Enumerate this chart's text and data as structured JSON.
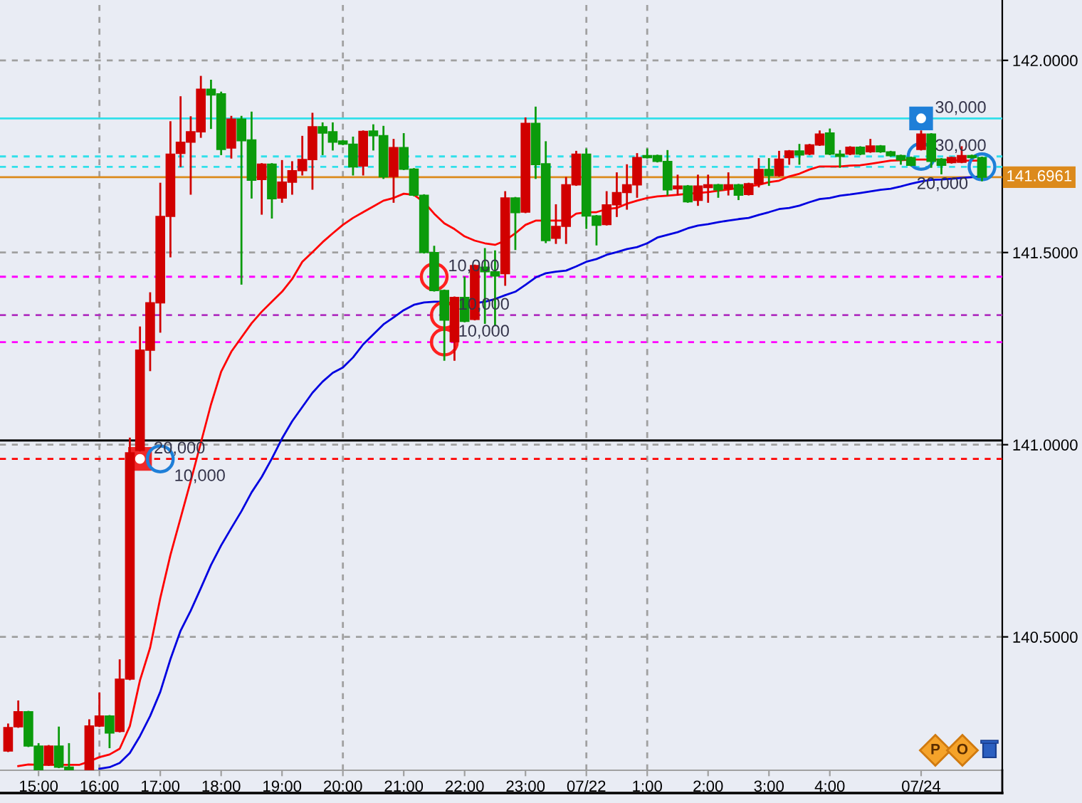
{
  "chart_data": {
    "type": "candlestick",
    "categories": [
      null,
      null,
      null,
      "15:00",
      null,
      null,
      null,
      null,
      null,
      "16:00",
      null,
      null,
      null,
      null,
      null,
      "17:00",
      null,
      null,
      null,
      null,
      null,
      "18:00",
      null,
      null,
      null,
      null,
      null,
      "19:00",
      null,
      null,
      null,
      null,
      null,
      "20:00",
      null,
      null,
      null,
      null,
      null,
      "21:00",
      null,
      null,
      null,
      null,
      null,
      "22:00",
      null,
      null,
      null,
      null,
      null,
      "23:00",
      null,
      null,
      null,
      null,
      null,
      "07/22",
      null,
      null,
      null,
      null,
      null,
      "1:00",
      null,
      null,
      null,
      null,
      null,
      "2:00",
      null,
      null,
      null,
      null,
      null,
      "3:00",
      null,
      null,
      null,
      null,
      null,
      "4:00",
      null,
      null,
      null,
      null,
      null,
      null,
      null,
      null,
      "07/24",
      null,
      null,
      null,
      null,
      null,
      null
    ],
    "ohlc": [
      [
        140.203,
        140.272,
        140.203,
        140.264
      ],
      [
        140.266,
        140.332,
        140.266,
        140.305
      ],
      [
        140.305,
        140.305,
        140.216,
        140.216
      ],
      [
        140.216,
        140.221,
        140.154,
        140.154
      ],
      [
        140.167,
        140.216,
        140.167,
        140.216
      ],
      [
        140.216,
        140.264,
        140.161,
        140.161
      ],
      [
        140.161,
        140.221,
        140.154,
        140.154
      ],
      null,
      [
        140.154,
        140.283,
        140.154,
        140.268
      ],
      [
        140.268,
        140.353,
        140.268,
        140.294
      ],
      [
        140.294,
        140.294,
        140.213,
        140.25
      ],
      [
        140.254,
        140.439,
        140.254,
        140.39
      ],
      [
        140.39,
        141.016,
        140.39,
        140.979
      ],
      [
        140.985,
        141.305,
        140.985,
        141.246
      ],
      [
        141.246,
        141.394,
        141.194,
        141.369
      ],
      [
        141.369,
        141.679,
        141.294,
        141.594
      ],
      [
        141.594,
        141.839,
        141.49,
        141.756
      ],
      [
        141.758,
        141.904,
        141.725,
        141.787
      ],
      [
        141.787,
        141.852,
        141.653,
        141.814
      ],
      [
        141.814,
        141.957,
        141.801,
        141.925
      ],
      [
        141.925,
        141.947,
        141.824,
        141.91
      ],
      [
        141.913,
        141.916,
        141.756,
        141.768
      ],
      [
        141.772,
        141.853,
        141.747,
        141.847
      ],
      [
        141.847,
        141.853,
        141.419,
        141.791
      ],
      [
        141.793,
        141.864,
        141.643,
        141.688
      ],
      [
        141.69,
        141.73,
        141.601,
        141.73
      ],
      [
        141.73,
        141.73,
        141.591,
        141.64
      ],
      [
        141.642,
        141.738,
        141.632,
        141.683
      ],
      [
        141.683,
        141.735,
        141.653,
        141.713
      ],
      [
        141.713,
        141.801,
        141.703,
        141.742
      ],
      [
        141.742,
        141.861,
        141.666,
        141.827
      ],
      [
        141.827,
        141.836,
        141.756,
        141.811
      ],
      [
        141.814,
        141.836,
        141.768,
        141.787
      ],
      [
        141.79,
        141.79,
        141.782,
        141.782
      ],
      [
        141.782,
        141.799,
        141.703,
        141.723
      ],
      [
        141.725,
        141.815,
        141.703,
        141.815
      ],
      [
        141.816,
        141.831,
        141.768,
        141.804
      ],
      [
        141.804,
        141.827,
        141.694,
        141.697
      ],
      [
        141.698,
        141.793,
        141.632,
        141.773
      ],
      [
        141.773,
        141.808,
        141.717,
        141.717
      ],
      [
        141.717,
        141.717,
        141.649,
        141.649
      ],
      [
        141.649,
        141.649,
        141.5,
        141.5
      ],
      [
        141.5,
        141.515,
        141.401,
        141.401
      ],
      [
        141.401,
        141.401,
        141.221,
        141.324
      ],
      [
        141.268,
        141.383,
        141.221,
        141.383
      ],
      [
        141.383,
        141.435,
        141.321,
        141.321
      ],
      [
        141.326,
        141.466,
        141.326,
        141.466
      ],
      [
        141.462,
        141.509,
        141.317,
        141.45
      ],
      [
        141.45,
        141.503,
        141.311,
        141.439
      ],
      [
        141.445,
        141.657,
        141.416,
        141.642
      ],
      [
        141.642,
        141.642,
        141.509,
        141.604
      ],
      [
        141.605,
        141.849,
        141.605,
        141.836
      ],
      [
        141.836,
        141.877,
        141.694,
        141.729
      ],
      [
        141.731,
        141.787,
        141.527,
        141.531
      ],
      [
        141.537,
        141.623,
        141.525,
        141.568
      ],
      [
        141.568,
        141.694,
        141.525,
        141.676
      ],
      [
        141.676,
        141.762,
        141.676,
        141.756
      ],
      [
        141.756,
        141.768,
        141.564,
        141.595
      ],
      [
        141.595,
        141.595,
        141.521,
        141.571
      ],
      [
        141.573,
        141.657,
        141.573,
        141.624
      ],
      [
        141.624,
        141.706,
        141.595,
        141.656
      ],
      [
        141.656,
        141.727,
        141.614,
        141.676
      ],
      [
        141.676,
        141.756,
        141.645,
        141.747
      ],
      [
        141.752,
        141.768,
        141.747,
        141.747
      ],
      [
        141.752,
        141.752,
        141.737,
        141.737
      ],
      [
        141.737,
        141.764,
        141.651,
        141.663
      ],
      [
        141.666,
        141.7,
        141.651,
        141.673
      ],
      [
        141.673,
        141.673,
        141.632,
        141.632
      ],
      [
        141.636,
        141.7,
        141.624,
        141.673
      ],
      [
        141.669,
        141.7,
        141.632,
        141.676
      ],
      [
        141.676,
        141.676,
        141.645,
        141.663
      ],
      [
        141.666,
        141.706,
        141.651,
        141.676
      ],
      [
        141.676,
        141.676,
        141.639,
        141.649
      ],
      [
        141.651,
        141.679,
        141.651,
        141.679
      ],
      [
        141.679,
        141.743,
        141.672,
        141.716
      ],
      [
        141.716,
        141.743,
        141.676,
        141.7
      ],
      [
        141.7,
        141.762,
        141.7,
        141.743
      ],
      [
        141.747,
        141.764,
        141.731,
        141.764
      ],
      [
        141.764,
        141.78,
        141.731,
        141.754
      ],
      [
        141.756,
        141.78,
        141.756,
        141.78
      ],
      [
        141.78,
        141.815,
        141.78,
        141.808
      ],
      [
        141.811,
        141.82,
        141.756,
        141.756
      ],
      [
        141.756,
        141.764,
        141.723,
        141.75
      ],
      [
        141.756,
        141.774,
        141.756,
        141.774
      ],
      [
        141.774,
        141.774,
        141.756,
        141.756
      ],
      [
        141.762,
        141.793,
        141.762,
        141.777
      ],
      [
        141.777,
        141.777,
        141.762,
        141.762
      ],
      [
        141.762,
        141.762,
        141.752,
        141.752
      ],
      [
        141.752,
        141.752,
        141.731,
        141.741
      ],
      [
        141.747,
        141.747,
        141.727,
        141.727
      ],
      [
        141.768,
        141.815,
        141.768,
        141.808
      ],
      [
        141.808,
        141.808,
        141.723,
        141.737
      ],
      [
        141.743,
        141.743,
        141.706,
        141.727
      ],
      [
        141.734,
        141.747,
        141.734,
        141.747
      ],
      [
        141.735,
        141.774,
        141.735,
        141.752
      ],
      [
        141.752,
        141.752,
        141.747,
        141.747
      ],
      [
        141.747,
        141.747,
        141.688,
        141.696
      ]
    ],
    "colors": [
      "#d10000",
      "#d10000",
      "#0b9b0b",
      "#0b9b0b",
      "#d10000",
      "#0b9b0b",
      "#0b9b0b",
      "#0b9b0b",
      "#d10000",
      "#d10000",
      "#0b9b0b",
      "#d10000",
      "#d10000",
      "#d10000",
      "#d10000",
      "#d10000",
      "#d10000",
      "#d10000",
      "#d10000",
      "#d10000",
      "#0b9b0b",
      "#0b9b0b",
      "#d10000",
      "#0b9b0b",
      "#0b9b0b",
      "#d10000",
      "#0b9b0b",
      "#d10000",
      "#d10000",
      "#d10000",
      "#d10000",
      "#0b9b0b",
      "#0b9b0b",
      "#0b9b0b",
      "#0b9b0b",
      "#d10000",
      "#0b9b0b",
      "#0b9b0b",
      "#d10000",
      "#0b9b0b",
      "#0b9b0b",
      "#0b9b0b",
      "#0b9b0b",
      "#0b9b0b",
      "#d10000",
      "#0b9b0b",
      "#d10000",
      "#0b9b0b",
      "#0b9b0b",
      "#d10000",
      "#0b9b0b",
      "#d10000",
      "#0b9b0b",
      "#0b9b0b",
      "#d10000",
      "#d10000",
      "#d10000",
      "#0b9b0b",
      "#0b9b0b",
      "#d10000",
      "#d10000",
      "#d10000",
      "#d10000",
      "#0b9b0b",
      "#0b9b0b",
      "#0b9b0b",
      "#d10000",
      "#0b9b0b",
      "#d10000",
      "#d10000",
      "#0b9b0b",
      "#d10000",
      "#0b9b0b",
      "#d10000",
      "#d10000",
      "#0b9b0b",
      "#d10000",
      "#d10000",
      "#0b9b0b",
      "#d10000",
      "#d10000",
      "#0b9b0b",
      "#0b9b0b",
      "#d10000",
      "#0b9b0b",
      "#d10000",
      "#0b9b0b",
      "#0b9b0b",
      "#0b9b0b",
      "#0b9b0b",
      "#d10000",
      "#0b9b0b",
      "#0b9b0b",
      "#d10000",
      "#d10000",
      "#0b9b0b",
      "#0b9b0b"
    ],
    "series": [
      {
        "type": "line",
        "color": "#ff0000",
        "values": [
          null,
          140.164,
          140.168,
          140.167,
          140.167,
          140.167,
          140.167,
          140.167,
          140.176,
          140.187,
          140.194,
          140.209,
          140.268,
          140.387,
          140.472,
          140.601,
          140.713,
          140.809,
          140.905,
          141.005,
          141.105,
          141.19,
          141.242,
          141.279,
          141.316,
          141.346,
          141.372,
          141.398,
          141.431,
          141.476,
          141.501,
          141.527,
          141.55,
          141.572,
          141.59,
          141.605,
          141.62,
          141.635,
          141.642,
          141.653,
          141.65,
          141.631,
          141.601,
          141.576,
          141.561,
          141.542,
          141.531,
          141.524,
          141.52,
          141.531,
          141.55,
          141.572,
          141.583,
          141.583,
          141.583,
          141.583,
          141.601,
          141.605,
          141.605,
          141.613,
          141.616,
          141.627,
          141.635,
          141.642,
          141.646,
          141.648,
          141.65,
          141.653,
          141.655,
          141.657,
          141.661,
          141.664,
          141.668,
          141.672,
          141.676,
          141.683,
          141.687,
          141.698,
          141.705,
          141.716,
          141.724,
          141.724,
          141.724,
          141.726,
          141.727,
          141.731,
          141.735,
          141.739,
          141.74,
          141.742,
          141.742,
          141.742,
          141.742,
          141.74,
          141.739,
          141.739,
          141.739
        ]
      },
      {
        "type": "line",
        "color": "#0000e0",
        "values": [
          null,
          null,
          null,
          null,
          null,
          null,
          null,
          null,
          null,
          140.157,
          140.161,
          140.172,
          140.198,
          140.242,
          140.294,
          140.357,
          140.442,
          140.516,
          140.568,
          140.627,
          140.687,
          140.738,
          140.783,
          140.827,
          140.876,
          140.916,
          140.964,
          141.016,
          141.061,
          141.098,
          141.135,
          141.164,
          141.187,
          141.201,
          141.227,
          141.261,
          141.287,
          141.313,
          141.331,
          141.35,
          141.364,
          141.37,
          141.372,
          141.372,
          null,
          null,
          141.368,
          141.372,
          141.379,
          141.389,
          141.398,
          141.416,
          141.435,
          141.446,
          141.45,
          141.453,
          141.464,
          141.476,
          141.483,
          141.494,
          141.501,
          141.509,
          141.514,
          141.524,
          141.539,
          141.546,
          141.553,
          141.563,
          141.57,
          141.574,
          141.579,
          141.583,
          141.587,
          141.59,
          141.598,
          141.605,
          141.613,
          141.616,
          141.622,
          141.631,
          141.639,
          141.642,
          141.648,
          141.651,
          141.655,
          141.659,
          141.663,
          141.666,
          141.672,
          141.679,
          141.685,
          141.689,
          141.69,
          141.692,
          141.694,
          141.696,
          141.698
        ]
      },
      {
        "type": "scatter",
        "color": "#ff2020",
        "marker": "circle",
        "values": [
          null,
          null,
          null,
          null,
          null,
          null,
          null,
          null,
          null,
          null,
          null,
          null,
          null,
          null,
          null,
          null,
          null,
          null,
          null,
          null,
          null,
          null,
          null,
          null,
          null,
          null,
          null,
          null,
          null,
          null,
          null,
          null,
          null,
          null,
          null,
          null,
          null,
          null,
          null,
          null,
          null,
          null,
          141.437,
          141.337,
          null,
          null,
          null,
          null,
          null,
          null,
          null,
          null,
          null,
          null,
          null,
          null,
          null,
          null,
          null,
          null,
          null,
          null,
          null,
          null,
          null,
          null,
          null,
          null,
          null,
          null,
          null,
          null,
          null,
          null,
          null,
          null,
          null,
          null,
          null,
          null,
          null,
          null,
          null,
          null,
          null,
          null,
          null,
          null,
          null,
          null,
          null,
          null,
          null,
          null,
          null,
          null,
          null
        ]
      },
      {
        "type": "scatter",
        "color": "#ff2020",
        "marker": "circle",
        "values": [
          null,
          null,
          null,
          null,
          null,
          null,
          null,
          null,
          null,
          null,
          null,
          null,
          null,
          null,
          null,
          null,
          null,
          null,
          null,
          null,
          null,
          null,
          null,
          null,
          null,
          null,
          null,
          null,
          null,
          null,
          null,
          null,
          null,
          null,
          null,
          null,
          null,
          null,
          null,
          null,
          null,
          null,
          null,
          141.267,
          null,
          null,
          null,
          null,
          null,
          null,
          null,
          null,
          null,
          null,
          null,
          null,
          null,
          null,
          null,
          null,
          null,
          null,
          null,
          null,
          null,
          null,
          null,
          null,
          null,
          null,
          null,
          null,
          null,
          null,
          null,
          null,
          null,
          null,
          null,
          null,
          null,
          null,
          null,
          null,
          null,
          null,
          null,
          null,
          null,
          null,
          null,
          null,
          null,
          null,
          null,
          null,
          null
        ]
      },
      {
        "type": "scatter",
        "color": "#f02828",
        "marker": "square",
        "values": [
          null,
          null,
          null,
          null,
          null,
          null,
          null,
          null,
          null,
          null,
          null,
          null,
          null,
          140.963,
          null,
          null,
          null,
          null,
          null,
          null,
          null,
          null,
          null,
          null,
          null,
          null,
          null,
          null,
          null,
          null,
          null,
          null,
          null,
          null,
          null,
          null,
          null,
          null,
          null,
          null,
          null,
          null,
          null,
          null,
          null,
          null,
          null,
          null,
          null,
          null,
          null,
          null,
          null,
          null,
          null,
          null,
          null,
          null,
          null,
          null,
          null,
          null,
          null,
          null,
          null,
          null,
          null,
          null,
          null,
          null,
          null,
          null,
          null,
          null,
          null,
          null,
          null,
          null,
          null,
          null,
          null,
          null,
          null,
          null,
          null,
          null,
          null,
          null,
          null,
          null,
          null,
          null,
          null,
          null,
          null,
          null,
          null
        ]
      },
      {
        "type": "scatter",
        "color": "#1e7fd8",
        "marker": "circle",
        "values": [
          null,
          null,
          null,
          null,
          null,
          null,
          null,
          null,
          null,
          null,
          null,
          null,
          null,
          null,
          null,
          140.963,
          null,
          null,
          null,
          null,
          null,
          null,
          null,
          null,
          null,
          null,
          null,
          null,
          null,
          null,
          null,
          null,
          null,
          null,
          null,
          null,
          null,
          null,
          null,
          null,
          null,
          null,
          null,
          null,
          null,
          null,
          null,
          null,
          null,
          null,
          null,
          null,
          null,
          null,
          null,
          null,
          null,
          null,
          null,
          null,
          null,
          null,
          null,
          null,
          null,
          null,
          null,
          null,
          null,
          null,
          null,
          null,
          null,
          null,
          null,
          null,
          null,
          null,
          null,
          null,
          null,
          null,
          null,
          null,
          null,
          null,
          null,
          null,
          null,
          null,
          141.75,
          null,
          null,
          null,
          null,
          null,
          141.723
        ]
      },
      {
        "type": "scatter",
        "color": "#1e7fd8",
        "marker": "square",
        "values": [
          null,
          null,
          null,
          null,
          null,
          null,
          null,
          null,
          null,
          null,
          null,
          null,
          null,
          null,
          null,
          null,
          null,
          null,
          null,
          null,
          null,
          null,
          null,
          null,
          null,
          null,
          null,
          null,
          null,
          null,
          null,
          null,
          null,
          null,
          null,
          null,
          null,
          null,
          null,
          null,
          null,
          null,
          null,
          null,
          null,
          null,
          null,
          null,
          null,
          null,
          null,
          null,
          null,
          null,
          null,
          null,
          null,
          null,
          null,
          null,
          null,
          null,
          null,
          null,
          null,
          null,
          null,
          null,
          null,
          null,
          null,
          null,
          null,
          null,
          null,
          null,
          null,
          null,
          null,
          null,
          null,
          null,
          null,
          null,
          null,
          null,
          null,
          null,
          null,
          null,
          141.849,
          null,
          null,
          null,
          null,
          null,
          null
        ]
      }
    ],
    "ylim": [
      140.153,
      142.157
    ],
    "yticks": [
      {
        "value": 140.5,
        "label": "140.5000"
      },
      {
        "value": 141,
        "label": "141.0000"
      },
      {
        "value": 141.5,
        "label": "141.5000"
      },
      {
        "value": 142,
        "label": "142.0000"
      }
    ],
    "grid": "y",
    "ref_lines": [
      {
        "axis": "y",
        "value": 141.849,
        "color": "#30e0ea",
        "line_style": "solid"
      },
      {
        "axis": "y",
        "value": 141.75,
        "color": "#30e0ea",
        "line_style": "dashed"
      },
      {
        "axis": "y",
        "value": 141.723,
        "color": "#30e0ea",
        "line_style": "dashed"
      },
      {
        "axis": "y",
        "value": 141.6961,
        "label": "141.6961",
        "color": "#dc8a1c",
        "line_style": "solid"
      },
      {
        "axis": "y",
        "value": 141.437,
        "color": "#ff00ff",
        "line_style": "dashed"
      },
      {
        "axis": "y",
        "value": 141.337,
        "color": "#b030c0",
        "line_style": "dashed"
      },
      {
        "axis": "y",
        "value": 141.267,
        "color": "#ff00ff",
        "line_style": "dashed"
      },
      {
        "axis": "y",
        "value": 141.011,
        "color": "#000000",
        "line_style": "solid"
      },
      {
        "axis": "y",
        "value": 140.963,
        "color": "#ff0000",
        "line_style": "dashed"
      },
      {
        "axis": "x",
        "value": "16:00",
        "color": "#a0a0a0",
        "line_style": "dashed"
      },
      {
        "axis": "x",
        "value": "20:00",
        "color": "#a0a0a0",
        "line_style": "dashed"
      },
      {
        "axis": "x",
        "value": "07/22",
        "color": "#a0a0a0",
        "line_style": "dashed"
      },
      {
        "axis": "x",
        "value": "1:00",
        "color": "#a0a0a0",
        "line_style": "dashed"
      }
    ],
    "annotations": [
      {
        "text": "10,000",
        "y": 141.437
      },
      {
        "text": "10,000",
        "y": 141.337
      },
      {
        "text": "10,000",
        "y": 141.267
      },
      {
        "text": "20,000",
        "y": 140.963
      },
      {
        "text": "10,000",
        "y": 140.963
      },
      {
        "text": "30,000",
        "y": 141.75
      },
      {
        "text": "20,000",
        "y": 141.723
      },
      {
        "text": "30,000",
        "y": 141.849
      },
      "P",
      "O"
    ]
  }
}
